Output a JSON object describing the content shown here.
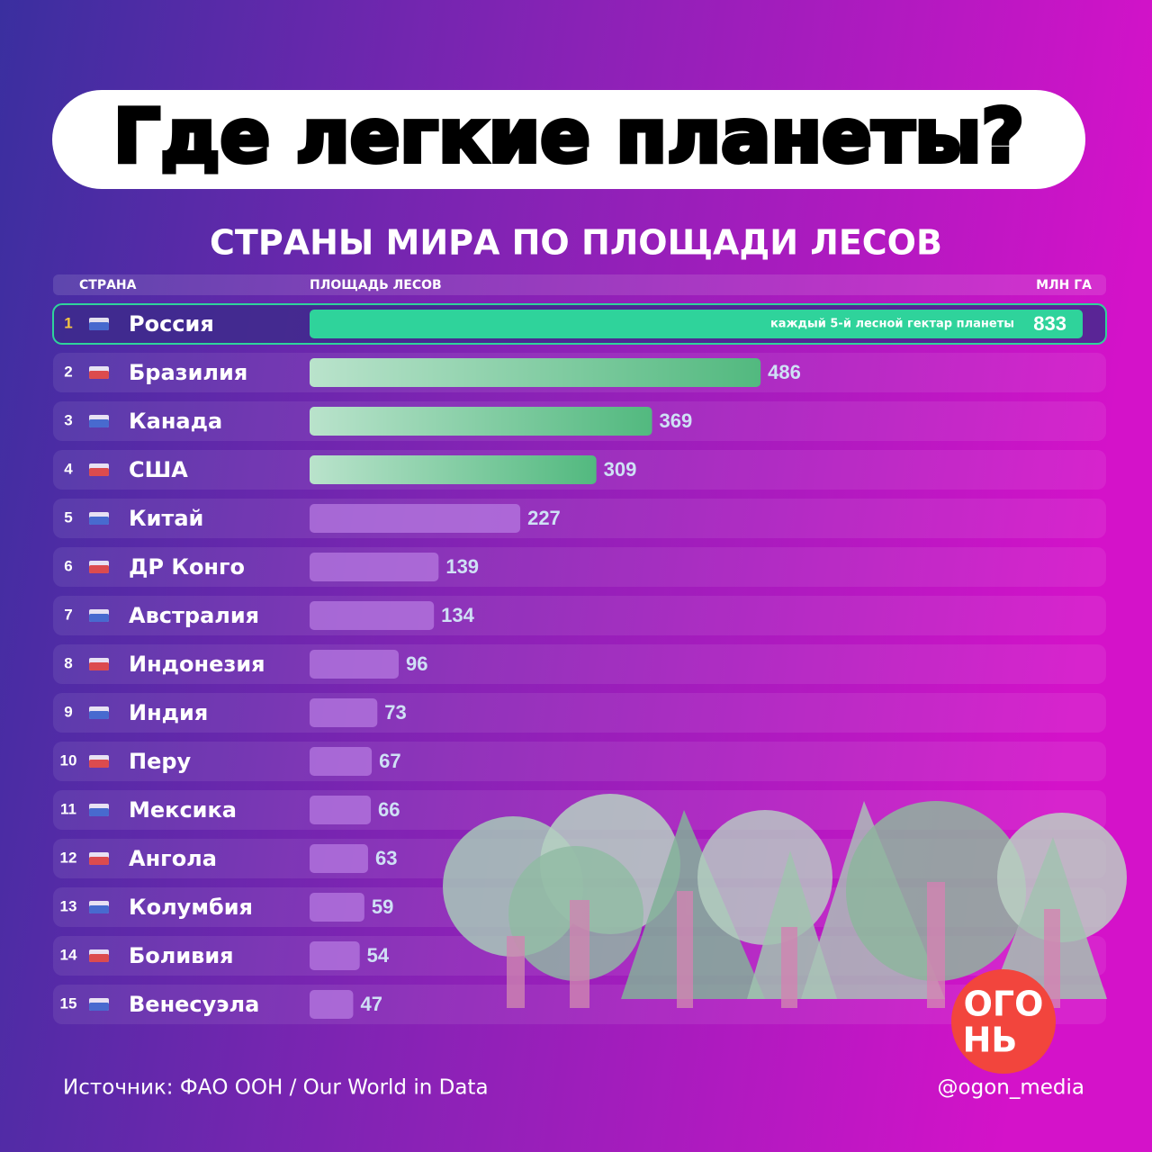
{
  "chart_data": {
    "type": "bar",
    "title": "Где легкие планеты?",
    "subtitle": "СТРАНЫ МИРА ПО ПЛОЩАДИ ЛЕСОВ",
    "header": {
      "country": "СТРАНА",
      "value": "ПЛОЩАДЬ ЛЕСОВ",
      "unit": "МЛН ГА"
    },
    "ranks": [
      1,
      2,
      3,
      4,
      5,
      6,
      7,
      8,
      9,
      10,
      11,
      12,
      13,
      14,
      15
    ],
    "categories": [
      "Россия",
      "Бразилия",
      "Канада",
      "США",
      "Китай",
      "ДР Конго",
      "Австралия",
      "Индонезия",
      "Индия",
      "Перу",
      "Мексика",
      "Ангола",
      "Колумбия",
      "Боливия",
      "Венесуэла"
    ],
    "values": [
      833,
      486,
      369,
      309,
      227,
      139,
      134,
      96,
      73,
      67,
      66,
      63,
      59,
      54,
      47
    ],
    "colors": [
      "#2fd39b",
      "#52b97f",
      "#52b97f",
      "#52b97f",
      "#b57ae0",
      "#b57ae0",
      "#b57ae0",
      "#b57ae0",
      "#b57ae0",
      "#b57ae0",
      "#b57ae0",
      "#b57ae0",
      "#b57ae0",
      "#b57ae0",
      "#b57ae0"
    ],
    "annotation": "каждый 5-й лесной гектар планеты",
    "source": "Источник:  ФАО ООН / Our World in Data",
    "handle": "@ogon_media",
    "logo": [
      "ОГО",
      "НЬ"
    ]
  }
}
